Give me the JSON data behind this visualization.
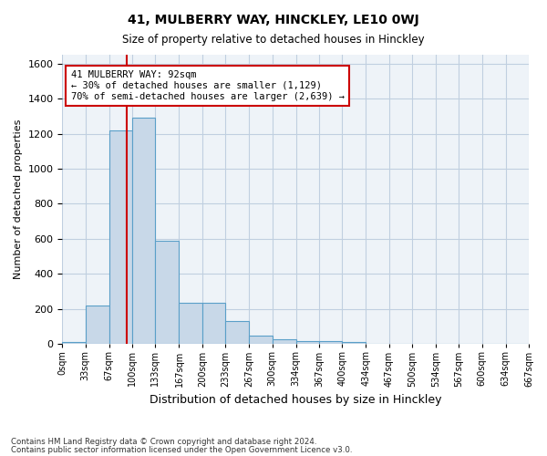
{
  "title1": "41, MULBERRY WAY, HINCKLEY, LE10 0WJ",
  "title2": "Size of property relative to detached houses in Hinckley",
  "xlabel": "Distribution of detached houses by size in Hinckley",
  "ylabel": "Number of detached properties",
  "footer1": "Contains HM Land Registry data © Crown copyright and database right 2024.",
  "footer2": "Contains public sector information licensed under the Open Government Licence v3.0.",
  "bin_edges": [
    0,
    33,
    67,
    100,
    133,
    167,
    200,
    233,
    267,
    300,
    334,
    367,
    400,
    434,
    467,
    500,
    534,
    567,
    600,
    634,
    667
  ],
  "bar_heights": [
    10,
    220,
    1220,
    1290,
    590,
    235,
    235,
    130,
    50,
    30,
    20,
    20,
    10,
    0,
    0,
    0,
    0,
    0,
    0,
    0
  ],
  "bar_facecolor": "#c8d8e8",
  "bar_edgecolor": "#5a9fc8",
  "grid_color": "#c0cfe0",
  "background_color": "#eef3f8",
  "vline_x": 92,
  "vline_color": "#cc0000",
  "annotation_text": "41 MULBERRY WAY: 92sqm\n← 30% of detached houses are smaller (1,129)\n70% of semi-detached houses are larger (2,639) →",
  "annotation_box_color": "#cc0000",
  "ylim": [
    0,
    1650
  ],
  "yticks": [
    0,
    200,
    400,
    600,
    800,
    1000,
    1200,
    1400,
    1600
  ],
  "tick_labels": [
    "0sqm",
    "33sqm",
    "67sqm",
    "100sqm",
    "133sqm",
    "167sqm",
    "200sqm",
    "233sqm",
    "267sqm",
    "300sqm",
    "334sqm",
    "367sqm",
    "400sqm",
    "434sqm",
    "467sqm",
    "500sqm",
    "534sqm",
    "567sqm",
    "600sqm",
    "634sqm",
    "667sqm"
  ]
}
